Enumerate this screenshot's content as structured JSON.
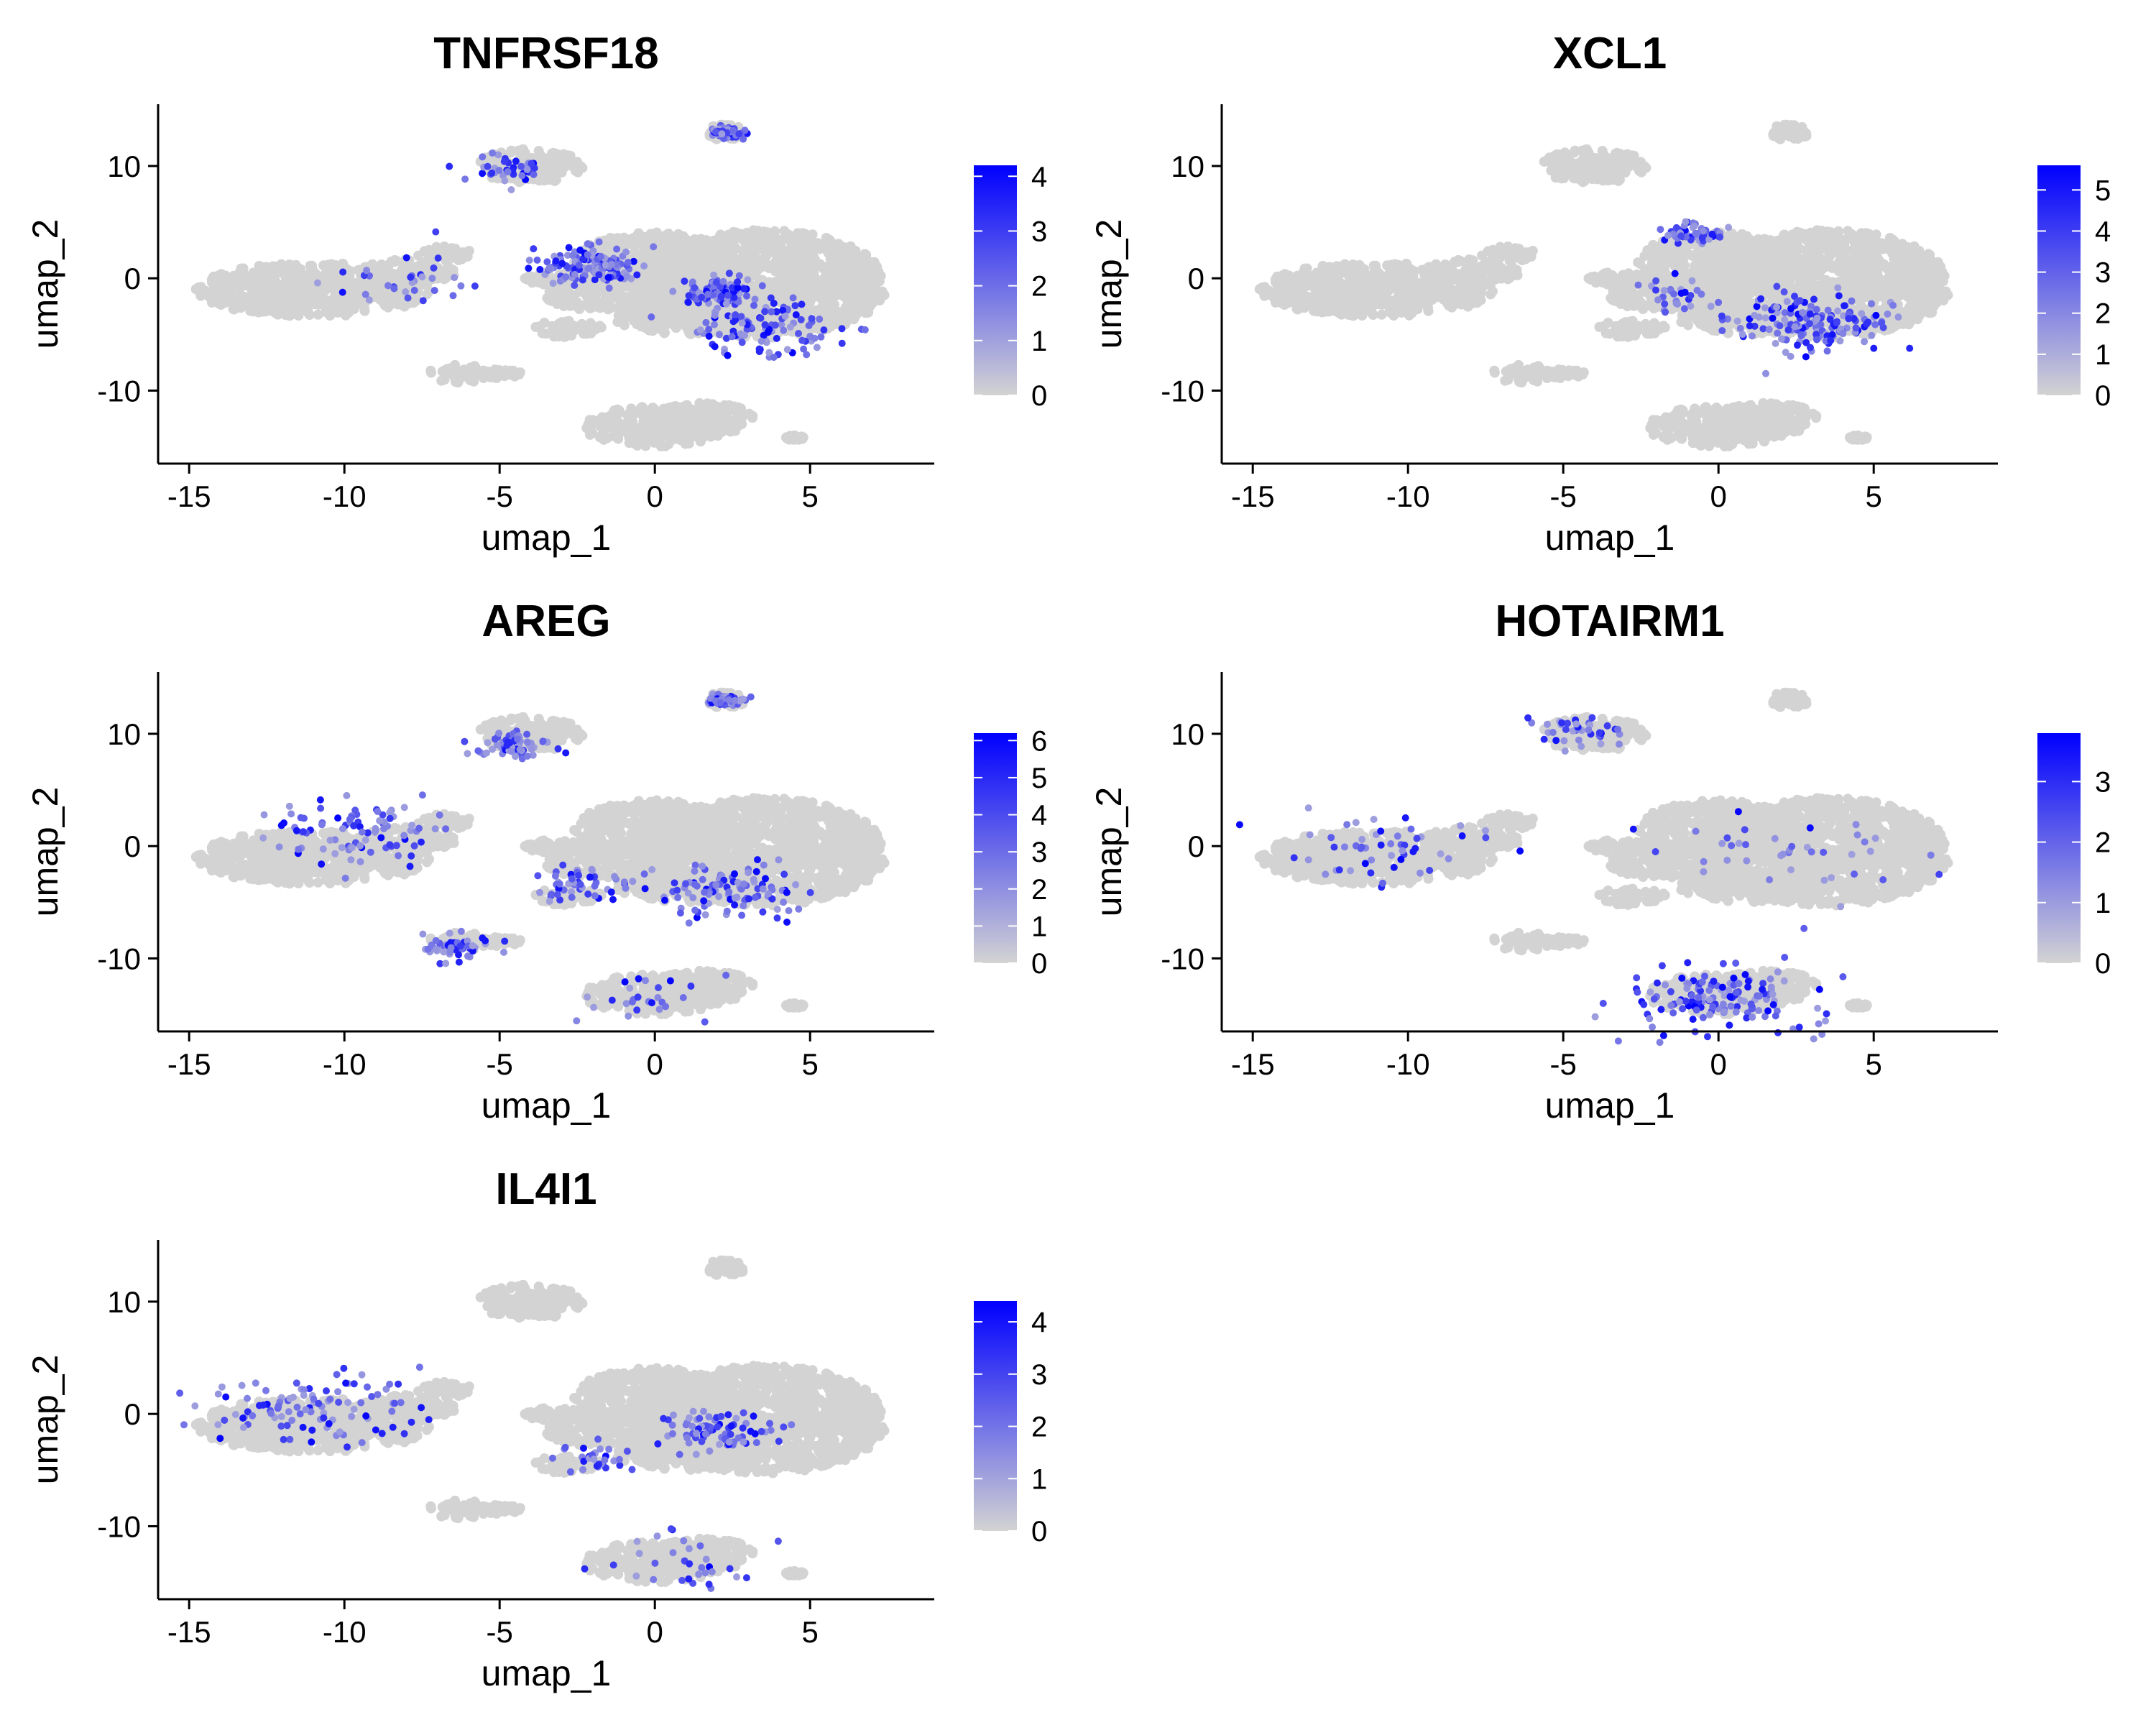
{
  "chart_data": [
    {
      "type": "scatter",
      "title": "TNFRSF18",
      "xlabel": "umap_1",
      "ylabel": "umap_2",
      "xlim": [
        -16,
        9
      ],
      "ylim": [
        -16.5,
        15.5
      ],
      "x_ticks": [
        -15,
        -10,
        -5,
        0,
        5
      ],
      "y_ticks": [
        -10,
        0,
        10
      ],
      "legend": {
        "position": "right",
        "min": 0,
        "max": 4.2,
        "ticks": [
          0,
          1,
          2,
          3,
          4
        ],
        "low_color": "#d3d3d3",
        "high_color": "#0000ff"
      },
      "hotspots": [
        {
          "x": -2,
          "y": 1.2,
          "spread": 1.3,
          "weight": 0.55
        },
        {
          "x": 2.2,
          "y": -1.2,
          "spread": 1.0,
          "weight": 0.4
        },
        {
          "x": 3.5,
          "y": -4.5,
          "spread": 2.0,
          "weight": 0.45
        },
        {
          "x": -8,
          "y": 0,
          "spread": 1.8,
          "weight": 0.12
        },
        {
          "x": -4.8,
          "y": 9.5,
          "spread": 1.2,
          "weight": 0.15
        },
        {
          "x": 2.3,
          "y": 13,
          "spread": 0.4,
          "weight": 0.3
        }
      ]
    },
    {
      "type": "scatter",
      "title": "XCL1",
      "xlabel": "umap_1",
      "ylabel": "umap_2",
      "xlim": [
        -16,
        9
      ],
      "ylim": [
        -16.5,
        15.5
      ],
      "x_ticks": [
        -15,
        -10,
        -5,
        0,
        5
      ],
      "y_ticks": [
        -10,
        0,
        10
      ],
      "legend": {
        "position": "right",
        "min": 0,
        "max": 5.6,
        "ticks": [
          0,
          1,
          2,
          3,
          4,
          5
        ],
        "low_color": "#d3d3d3",
        "high_color": "#0000ff"
      },
      "hotspots": [
        {
          "x": 3,
          "y": -4,
          "spread": 2.2,
          "weight": 0.6
        },
        {
          "x": -0.8,
          "y": 4,
          "spread": 0.8,
          "weight": 0.2
        },
        {
          "x": -1.5,
          "y": -1.5,
          "spread": 1.5,
          "weight": 0.12
        }
      ]
    },
    {
      "type": "scatter",
      "title": "AREG",
      "xlabel": "umap_1",
      "ylabel": "umap_2",
      "xlim": [
        -16,
        9
      ],
      "ylim": [
        -16.5,
        15.5
      ],
      "x_ticks": [
        -15,
        -10,
        -5,
        0,
        5
      ],
      "y_ticks": [
        -10,
        0,
        10
      ],
      "legend": {
        "position": "right",
        "min": 0,
        "max": 6.2,
        "ticks": [
          0,
          1,
          2,
          3,
          4,
          5,
          6
        ],
        "low_color": "#d3d3d3",
        "high_color": "#0000ff"
      },
      "hotspots": [
        {
          "x": -9.5,
          "y": 1.2,
          "spread": 2.3,
          "weight": 0.35
        },
        {
          "x": 2.5,
          "y": -4,
          "spread": 2.0,
          "weight": 0.4
        },
        {
          "x": -4.5,
          "y": 9,
          "spread": 1.0,
          "weight": 0.25
        },
        {
          "x": 2.3,
          "y": 13,
          "spread": 0.4,
          "weight": 0.45
        },
        {
          "x": -2.5,
          "y": -3.5,
          "spread": 1.0,
          "weight": 0.2
        },
        {
          "x": 0,
          "y": -13.5,
          "spread": 2.0,
          "weight": 0.1
        },
        {
          "x": -6.5,
          "y": -9,
          "spread": 1.0,
          "weight": 0.2
        }
      ]
    },
    {
      "type": "scatter",
      "title": "HOTAIRM1",
      "xlabel": "umap_1",
      "ylabel": "umap_2",
      "xlim": [
        -16,
        9
      ],
      "ylim": [
        -16.5,
        15.5
      ],
      "x_ticks": [
        -15,
        -10,
        -5,
        0,
        5
      ],
      "y_ticks": [
        -10,
        0,
        10
      ],
      "legend": {
        "position": "right",
        "min": 0,
        "max": 3.8,
        "ticks": [
          0,
          1,
          2,
          3
        ],
        "low_color": "#d3d3d3",
        "high_color": "#0000ff"
      },
      "hotspots": [
        {
          "x": 0,
          "y": -13.5,
          "spread": 2.4,
          "weight": 0.55
        },
        {
          "x": -11,
          "y": 0,
          "spread": 3.0,
          "weight": 0.2
        },
        {
          "x": 2,
          "y": -1,
          "spread": 3.5,
          "weight": 0.15
        },
        {
          "x": -4.5,
          "y": 10,
          "spread": 1.2,
          "weight": 0.15
        }
      ]
    },
    {
      "type": "scatter",
      "title": "IL4I1",
      "xlabel": "umap_1",
      "ylabel": "umap_2",
      "xlim": [
        -16,
        9
      ],
      "ylim": [
        -16.5,
        15.5
      ],
      "x_ticks": [
        -15,
        -10,
        -5,
        0,
        5
      ],
      "y_ticks": [
        -10,
        0,
        10
      ],
      "legend": {
        "position": "right",
        "min": 0,
        "max": 4.4,
        "ticks": [
          0,
          1,
          2,
          3,
          4
        ],
        "low_color": "#d3d3d3",
        "high_color": "#0000ff"
      },
      "hotspots": [
        {
          "x": -11,
          "y": 0.5,
          "spread": 2.8,
          "weight": 0.4
        },
        {
          "x": 2,
          "y": -1.5,
          "spread": 1.5,
          "weight": 0.3
        },
        {
          "x": 1,
          "y": -13,
          "spread": 2.0,
          "weight": 0.12
        },
        {
          "x": -2,
          "y": -4,
          "spread": 1.0,
          "weight": 0.12
        }
      ]
    }
  ],
  "clusters_umap": [
    {
      "cx": -11,
      "cy": -1,
      "rx": 3.8,
      "ry": 2.4
    },
    {
      "cx": -8,
      "cy": 0.5,
      "rx": 1.6,
      "ry": 1.2
    },
    {
      "cx": -6.8,
      "cy": 2.2,
      "rx": 0.9,
      "ry": 0.7
    },
    {
      "cx": -4,
      "cy": 10,
      "rx": 1.8,
      "ry": 1.5
    },
    {
      "cx": -6.3,
      "cy": -8.5,
      "rx": 1.0,
      "ry": 0.8
    },
    {
      "cx": -5,
      "cy": -8.5,
      "rx": 0.7,
      "ry": 0.4
    },
    {
      "cx": 2.3,
      "cy": 13,
      "rx": 0.6,
      "ry": 0.8
    },
    {
      "cx": 3.5,
      "cy": -0.5,
      "rx": 4.0,
      "ry": 4.8
    },
    {
      "cx": 0,
      "cy": 1.5,
      "rx": 2.6,
      "ry": 2.6
    },
    {
      "cx": -1.5,
      "cy": -1.5,
      "rx": 2.0,
      "ry": 1.5
    },
    {
      "cx": -2.8,
      "cy": -4.5,
      "rx": 1.1,
      "ry": 0.8
    },
    {
      "cx": -3.2,
      "cy": 0,
      "rx": 1.0,
      "ry": 0.6
    },
    {
      "cx": 1.2,
      "cy": -3.5,
      "rx": 2.5,
      "ry": 1.5
    },
    {
      "cx": 0,
      "cy": -13.2,
      "rx": 2.3,
      "ry": 1.8
    },
    {
      "cx": 1.6,
      "cy": -12.5,
      "rx": 1.6,
      "ry": 1.4
    },
    {
      "cx": 4.5,
      "cy": -14.2,
      "rx": 0.3,
      "ry": 0.2
    }
  ]
}
